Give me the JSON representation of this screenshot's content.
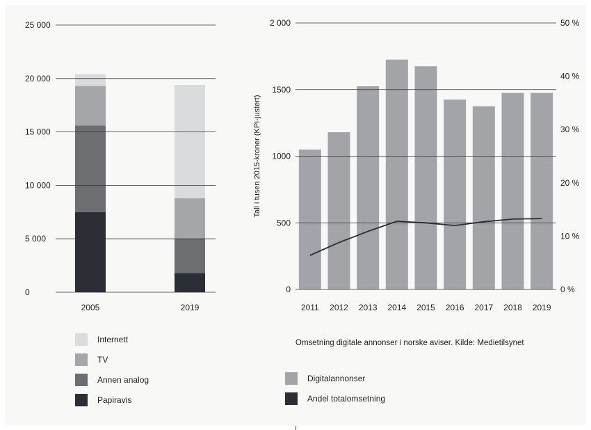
{
  "colors": {
    "papiravis": "#2b2e35",
    "annen_analog": "#6d6e71",
    "tv": "#a5a6a9",
    "internett": "#dadbdc",
    "digitalannonser": "#a3a4a7",
    "andel_line": "#2b2e35",
    "grid": "#333333"
  },
  "chart_data": [
    {
      "type": "bar",
      "stacked": true,
      "categories": [
        "2005",
        "2019"
      ],
      "series": [
        {
          "name": "Papiravis",
          "values": [
            7500,
            1800
          ]
        },
        {
          "name": "Annen analog",
          "values": [
            8100,
            3200
          ]
        },
        {
          "name": "TV",
          "values": [
            3700,
            3800
          ]
        },
        {
          "name": "Internett",
          "values": [
            1100,
            10600
          ]
        }
      ],
      "ylim": [
        0,
        25000
      ],
      "yticks": [
        0,
        5000,
        10000,
        15000,
        20000,
        25000
      ],
      "ytick_labels": [
        "0",
        "5 000",
        "10 000",
        "15 000",
        "20 000",
        "25 000"
      ],
      "grid": true,
      "legend_position": "bottom"
    },
    {
      "type": "bar",
      "categories": [
        "2011",
        "2012",
        "2013",
        "2014",
        "2015",
        "2016",
        "2017",
        "2018",
        "2019"
      ],
      "series": [
        {
          "name": "Digitalannonser",
          "type": "bar",
          "axis": "left",
          "values": [
            1050,
            1180,
            1525,
            1725,
            1675,
            1425,
            1375,
            1475,
            1475
          ]
        },
        {
          "name": "Andel totalomsetning",
          "type": "line",
          "axis": "right",
          "values": [
            6.4,
            8.8,
            10.9,
            12.8,
            12.5,
            12.0,
            12.7,
            13.2,
            13.3
          ]
        }
      ],
      "ylabel": "Tall i tusen 2015-kroner (KPI-justert)",
      "ylim": [
        0,
        2000
      ],
      "yticks": [
        0,
        500,
        1000,
        1500,
        2000
      ],
      "ytick_labels": [
        "0",
        "500",
        "1000",
        "1500",
        "2 000"
      ],
      "y2lim": [
        0,
        50
      ],
      "y2ticks": [
        0,
        10,
        20,
        30,
        40,
        50
      ],
      "y2tick_labels": [
        "0 %",
        "10 %",
        "20 %",
        "30 %",
        "40 %",
        "50 %"
      ],
      "caption": "Omsetning digitale annonser i norske aviser. Kilde: Medietilsynet",
      "grid": true,
      "legend_position": "bottom"
    }
  ],
  "legend_left": [
    {
      "label": "Internett",
      "color": "#dadbdc"
    },
    {
      "label": "TV",
      "color": "#a5a6a9"
    },
    {
      "label": "Annen analog",
      "color": "#6d6e71"
    },
    {
      "label": "Papiravis",
      "color": "#2b2e35"
    }
  ],
  "legend_right": [
    {
      "label": "Digitalannonser",
      "color": "#a3a4a7"
    },
    {
      "label": "Andel totalomsetning",
      "color": "#2b2e35"
    }
  ]
}
